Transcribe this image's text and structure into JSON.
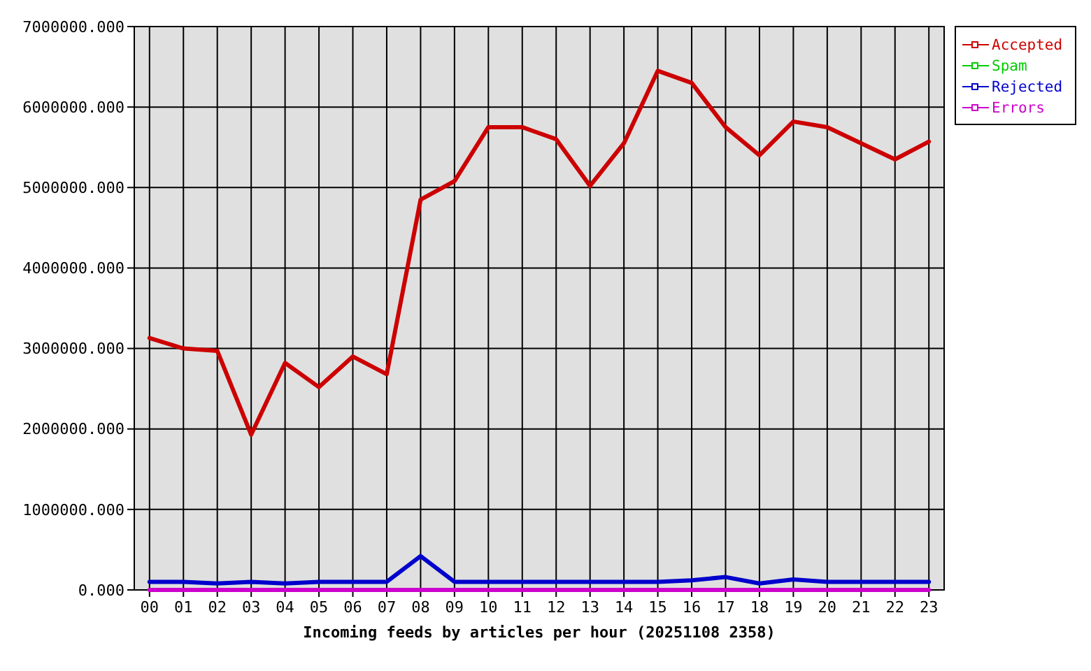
{
  "chart_data": {
    "type": "line",
    "xlabel": "Incoming feeds by articles per hour (20251108 2358)",
    "categories": [
      "00",
      "01",
      "02",
      "03",
      "04",
      "05",
      "06",
      "07",
      "08",
      "09",
      "10",
      "11",
      "12",
      "13",
      "14",
      "15",
      "16",
      "17",
      "18",
      "19",
      "20",
      "21",
      "22",
      "23"
    ],
    "ylim": [
      0,
      7000000
    ],
    "yticks": [
      {
        "value": 0,
        "label": "0.000"
      },
      {
        "value": 1000000,
        "label": "1000000.000"
      },
      {
        "value": 2000000,
        "label": "2000000.000"
      },
      {
        "value": 3000000,
        "label": "3000000.000"
      },
      {
        "value": 4000000,
        "label": "4000000.000"
      },
      {
        "value": 5000000,
        "label": "5000000.000"
      },
      {
        "value": 6000000,
        "label": "6000000.000"
      },
      {
        "value": 7000000,
        "label": "7000000.000"
      }
    ],
    "grid": true,
    "legend": "top right",
    "marker": "none",
    "line_style": "solid",
    "series": [
      {
        "name": "Accepted",
        "color": "#cc0000",
        "values": [
          3130000,
          3000000,
          2970000,
          1930000,
          2820000,
          2520000,
          2900000,
          2680000,
          4850000,
          5080000,
          5750000,
          5750000,
          5600000,
          5020000,
          5550000,
          6450000,
          6300000,
          5750000,
          5400000,
          5820000,
          5750000,
          5550000,
          5350000,
          5570000
        ]
      },
      {
        "name": "Spam",
        "color": "#00cc00",
        "values": [
          null,
          null,
          null,
          null,
          null,
          null,
          null,
          null,
          null,
          null,
          null,
          null,
          null,
          null,
          null,
          null,
          null,
          null,
          null,
          null,
          null,
          null,
          null,
          null
        ]
      },
      {
        "name": "Rejected",
        "color": "#0000cc",
        "values": [
          100000,
          100000,
          80000,
          100000,
          80000,
          100000,
          100000,
          100000,
          420000,
          100000,
          100000,
          100000,
          100000,
          100000,
          100000,
          100000,
          120000,
          160000,
          80000,
          130000,
          100000,
          100000,
          100000,
          100000
        ]
      },
      {
        "name": "Errors",
        "color": "#cc00cc",
        "values": [
          0,
          0,
          0,
          0,
          0,
          0,
          0,
          0,
          0,
          0,
          0,
          0,
          0,
          0,
          0,
          0,
          0,
          0,
          0,
          0,
          0,
          0,
          0,
          0
        ]
      }
    ]
  }
}
